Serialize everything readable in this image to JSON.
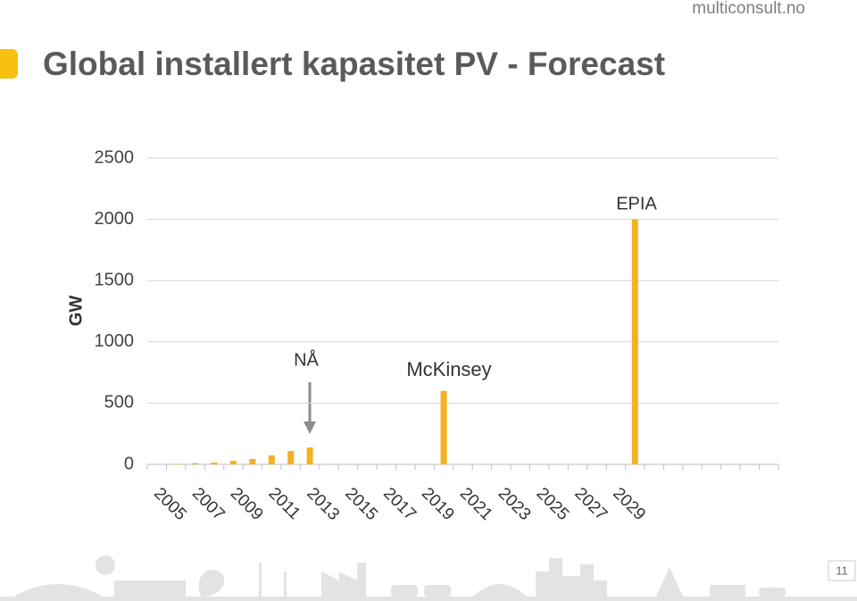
{
  "page": {
    "site": "multiconsult.no",
    "page_number": "11"
  },
  "chart_data": {
    "type": "bar",
    "title": "Global installert kapasitet PV - Forecast",
    "ylabel": "GW",
    "categories": [
      null,
      "2005",
      null,
      "2007",
      null,
      "2009",
      null,
      "2011",
      null,
      "2013",
      null,
      "2015",
      null,
      "2017",
      null,
      "2019",
      null,
      "2021",
      null,
      "2023",
      null,
      "2025",
      null,
      "2027",
      null,
      "2029",
      null,
      null,
      null,
      null,
      null,
      null,
      null
    ],
    "values": [
      null,
      5,
      10,
      15,
      29,
      44,
      73,
      109,
      138,
      null,
      null,
      null,
      null,
      null,
      null,
      600,
      null,
      null,
      null,
      null,
      null,
      null,
      null,
      null,
      null,
      2000,
      null,
      null,
      null,
      null,
      null,
      null,
      null
    ],
    "color": "#f4b223",
    "ylim": [
      0,
      2500
    ],
    "yticks": [
      0,
      500,
      1000,
      1500,
      2000,
      2500
    ],
    "grid": true,
    "annotations": [
      "NÅ",
      "McKinsey",
      "EPIA"
    ]
  }
}
